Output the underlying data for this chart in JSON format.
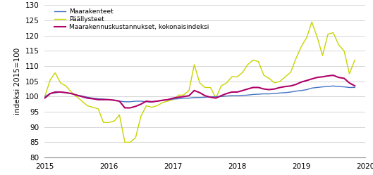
{
  "title": "",
  "ylabel": "indeksi 2015=100",
  "ylim": [
    80,
    130
  ],
  "yticks": [
    80,
    85,
    90,
    95,
    100,
    105,
    110,
    115,
    120,
    125,
    130
  ],
  "colors": {
    "maarakenteet": "#4472c4",
    "paallysteet": "#c8d400",
    "kokonaisindeksi": "#b0006a"
  },
  "maarakenteet": [
    100.0,
    101.0,
    101.2,
    101.5,
    101.3,
    101.0,
    100.5,
    100.2,
    99.8,
    99.5,
    99.3,
    99.2,
    99.0,
    98.8,
    98.5,
    98.3,
    98.3,
    98.5,
    98.5,
    98.3,
    98.2,
    98.5,
    98.7,
    99.0,
    99.2,
    99.3,
    99.5,
    99.5,
    99.7,
    99.7,
    99.8,
    99.9,
    100.0,
    100.0,
    100.2,
    100.3,
    100.3,
    100.4,
    100.5,
    100.7,
    100.8,
    100.9,
    100.9,
    101.0,
    101.2,
    101.3,
    101.5,
    101.8,
    102.0,
    102.3,
    102.8,
    103.0,
    103.2,
    103.3,
    103.5,
    103.3,
    103.2,
    103.0,
    103.0
  ],
  "paallysteet": [
    100.0,
    105.5,
    107.8,
    104.5,
    103.5,
    101.5,
    100.0,
    98.5,
    97.0,
    96.5,
    96.0,
    91.5,
    91.5,
    92.0,
    94.0,
    85.0,
    85.0,
    86.5,
    93.5,
    97.0,
    96.5,
    97.0,
    98.0,
    98.5,
    99.0,
    100.5,
    100.5,
    102.0,
    110.5,
    104.5,
    103.0,
    103.0,
    99.5,
    103.5,
    104.5,
    106.5,
    106.5,
    108.0,
    110.5,
    112.0,
    111.5,
    107.0,
    106.0,
    104.5,
    105.0,
    106.5,
    108.0,
    112.5,
    116.5,
    119.5,
    124.5,
    119.5,
    113.5,
    120.5,
    121.0,
    117.0,
    115.0,
    107.5,
    112.0
  ],
  "kokonaisindeksi": [
    99.5,
    101.0,
    101.5,
    101.5,
    101.3,
    101.0,
    100.5,
    100.0,
    99.5,
    99.3,
    99.0,
    99.0,
    99.0,
    98.8,
    98.5,
    96.3,
    96.3,
    96.8,
    97.5,
    98.5,
    98.3,
    98.5,
    98.8,
    99.0,
    99.5,
    99.8,
    100.0,
    100.3,
    102.0,
    101.3,
    100.3,
    99.8,
    99.5,
    100.3,
    101.0,
    101.5,
    101.5,
    102.0,
    102.5,
    103.0,
    103.0,
    102.5,
    102.3,
    102.5,
    103.0,
    103.3,
    103.5,
    104.0,
    104.8,
    105.3,
    105.8,
    106.3,
    106.5,
    106.8,
    107.0,
    106.3,
    106.0,
    104.5,
    103.5
  ]
}
